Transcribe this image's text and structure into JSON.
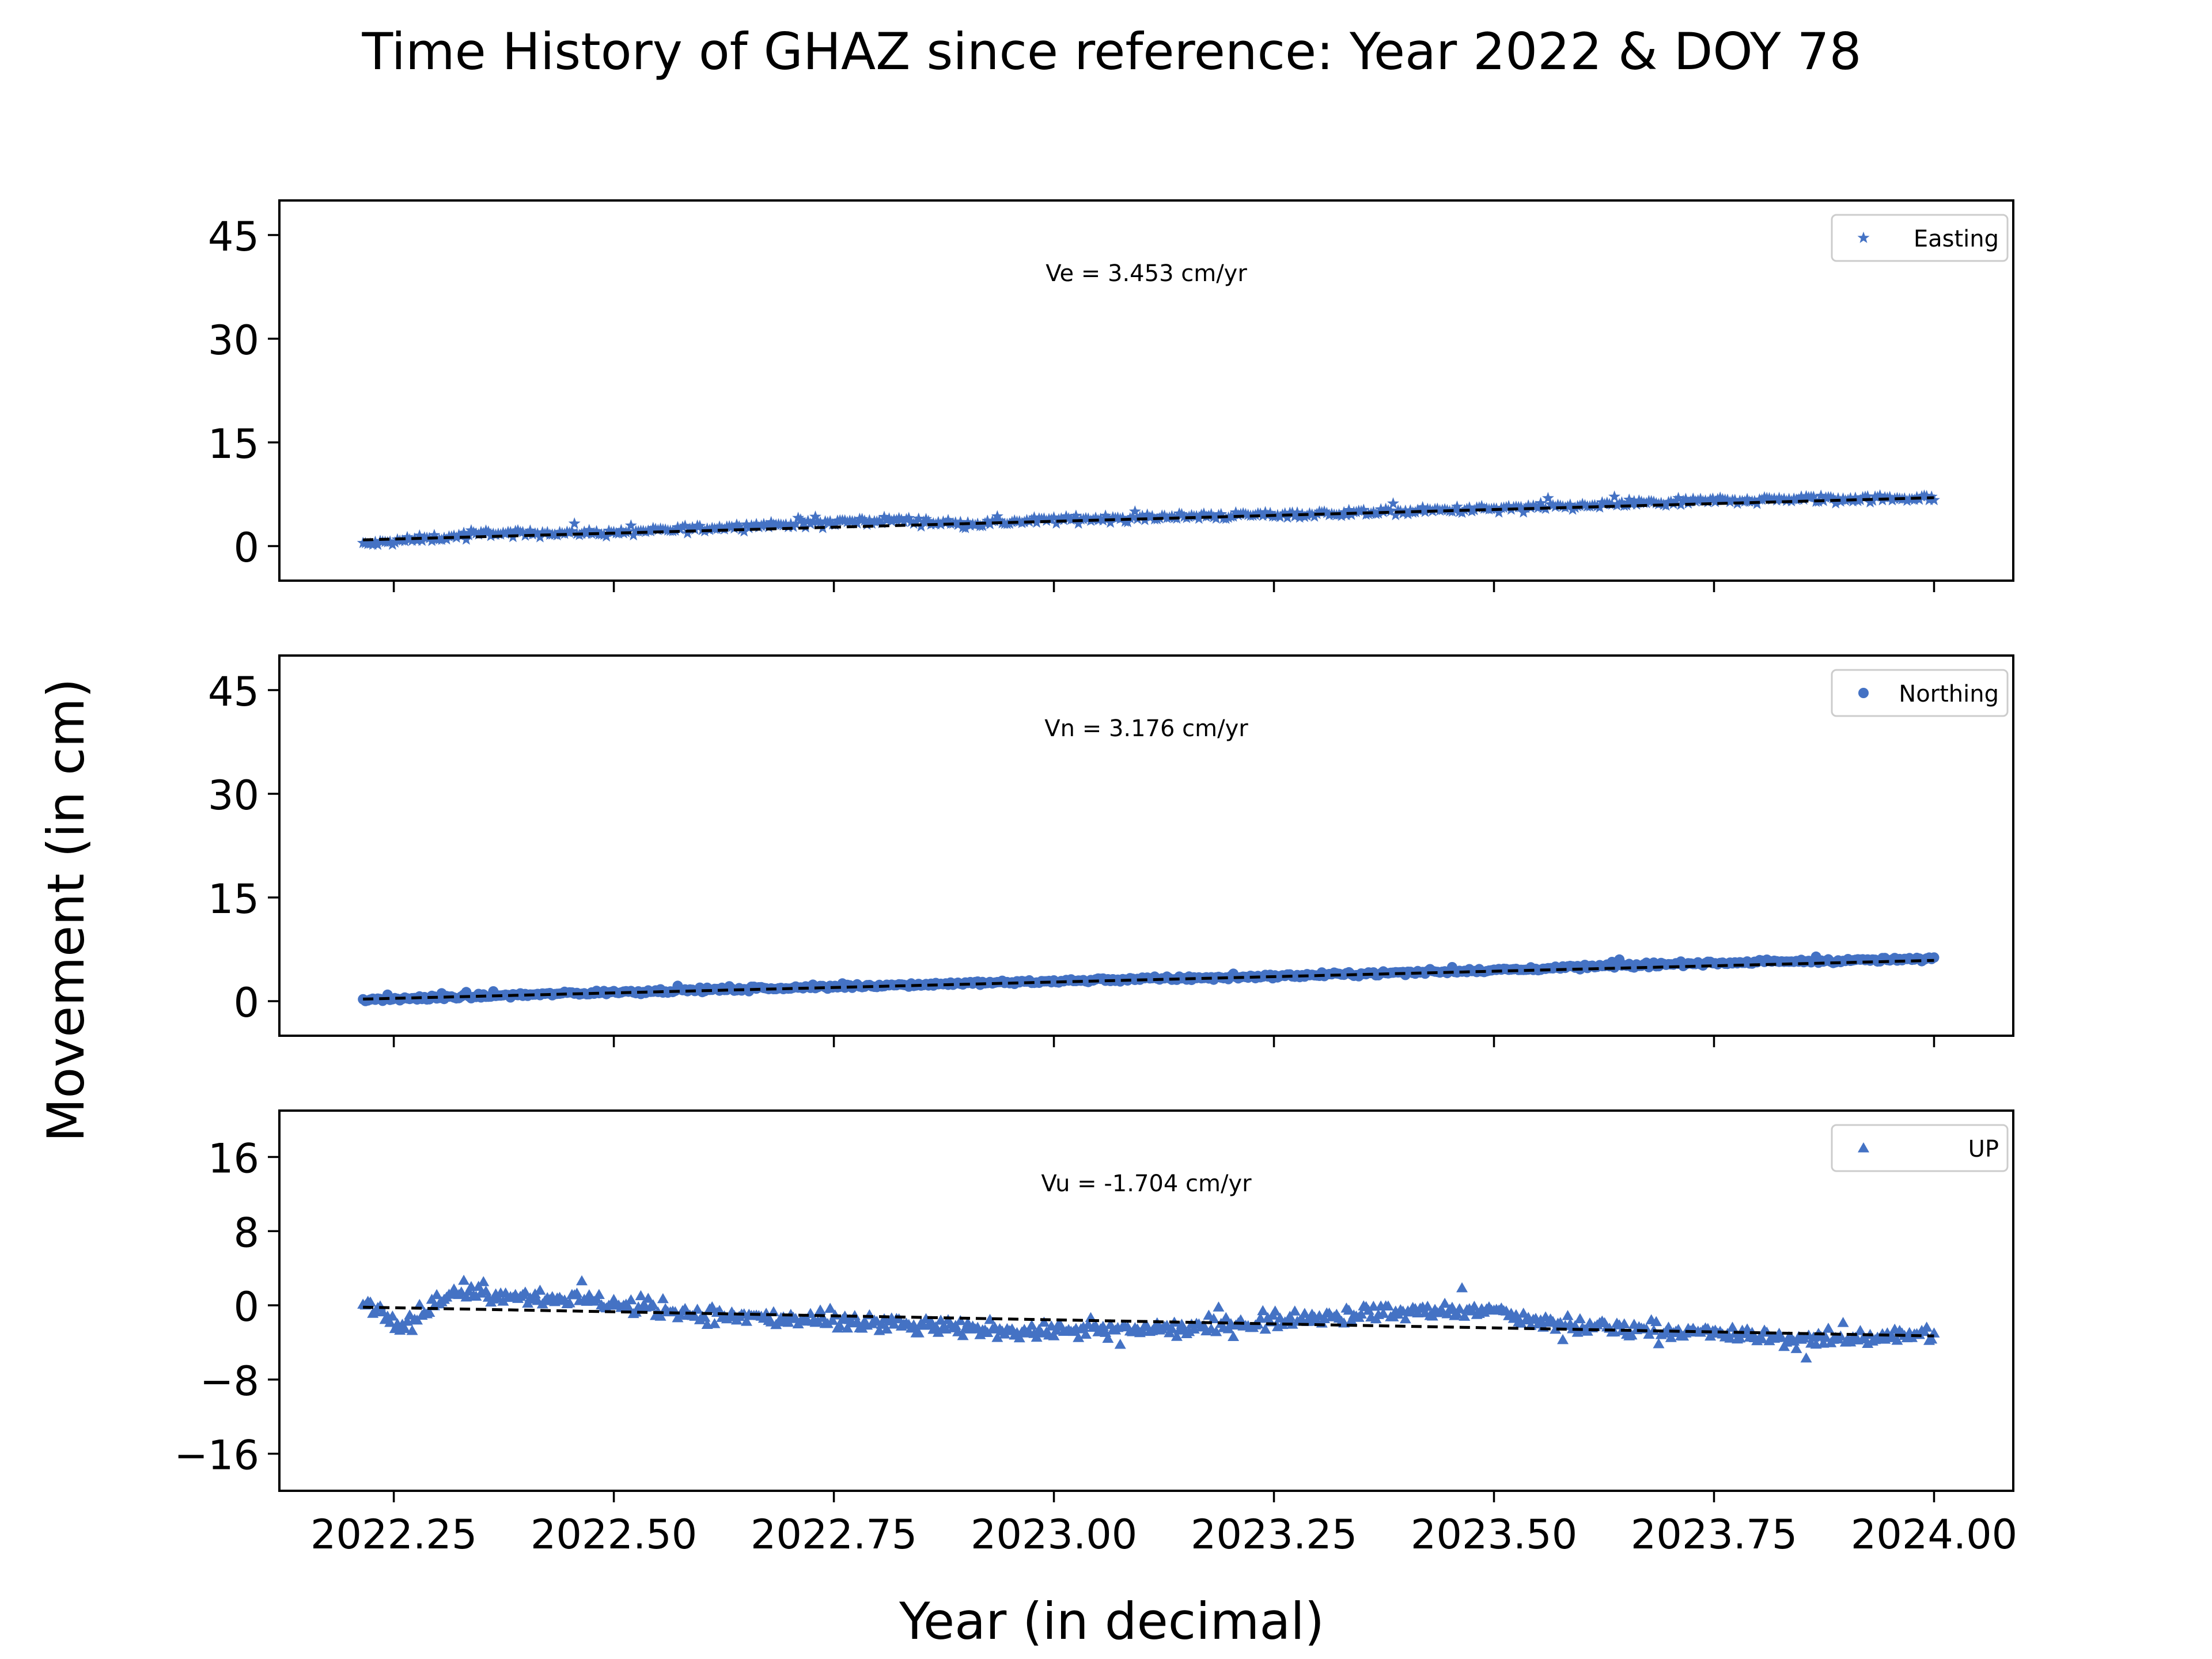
{
  "chart_data": {
    "type": "scatter",
    "title": "Time History of GHAZ since reference: Year 2022 & DOY 78",
    "xlabel": "Year (in decimal)",
    "ylabel": "Movement (in cm)",
    "xlim": [
      2022.12,
      2024.09
    ],
    "xticks": [
      "2022.25",
      "2022.50",
      "2022.75",
      "2023.00",
      "2023.25",
      "2023.50",
      "2023.75",
      "2024.00"
    ],
    "xtick_values": [
      2022.25,
      2022.5,
      2022.75,
      2023.0,
      2023.25,
      2023.5,
      2023.75,
      2024.0
    ],
    "x_start": 2022.215,
    "x_end": 2024.0,
    "marker_color": "#4472c4",
    "trend_color": "#000000",
    "grid": false,
    "legend_position": "top-right",
    "panels": [
      {
        "series_name": "Easting",
        "marker": "star",
        "ylim": [
          -5,
          50
        ],
        "yticks": [
          0,
          15,
          30,
          45
        ],
        "ytick_labels": [
          "0",
          "15",
          "30",
          "45"
        ],
        "annotation": "Ve =  3.453 cm/yr",
        "trend": {
          "start": [
            2022.215,
            0.9
          ],
          "end": [
            2024.0,
            7.0
          ]
        },
        "profile": [
          [
            2022.215,
            0.2
          ],
          [
            2022.35,
            1.8
          ],
          [
            2022.5,
            1.9
          ],
          [
            2022.65,
            2.9
          ],
          [
            2022.82,
            3.8
          ],
          [
            2022.9,
            3.1
          ],
          [
            2023.0,
            3.8
          ],
          [
            2023.2,
            4.4
          ],
          [
            2023.4,
            5.0
          ],
          [
            2023.6,
            5.8
          ],
          [
            2023.75,
            6.6
          ],
          [
            2024.0,
            7.0
          ]
        ],
        "scatter": 0.8
      },
      {
        "series_name": "Northing",
        "marker": "circle",
        "ylim": [
          -5,
          50
        ],
        "yticks": [
          0,
          15,
          30,
          45
        ],
        "ytick_labels": [
          "0",
          "15",
          "30",
          "45"
        ],
        "annotation": "Vn =  3.176 cm/yr",
        "trend": {
          "start": [
            2022.215,
            0.3
          ],
          "end": [
            2024.0,
            5.9
          ]
        },
        "profile": [
          [
            2022.215,
            0.2
          ],
          [
            2022.5,
            1.3
          ],
          [
            2022.75,
            2.1
          ],
          [
            2023.0,
            2.9
          ],
          [
            2023.25,
            3.6
          ],
          [
            2023.5,
            4.5
          ],
          [
            2023.7,
            5.4
          ],
          [
            2024.0,
            6.1
          ]
        ],
        "scatter": 0.45
      },
      {
        "series_name": "UP",
        "marker": "triangle",
        "ylim": [
          -20,
          21
        ],
        "yticks": [
          -16,
          -8,
          0,
          8,
          16
        ],
        "ytick_labels": [
          "−16",
          "−8",
          "0",
          "8",
          "16"
        ],
        "annotation": "Vu = -1.704 cm/yr",
        "trend": {
          "start": [
            2022.215,
            -0.2
          ],
          "end": [
            2024.0,
            -3.3
          ]
        },
        "profile": [
          [
            2022.215,
            0.5
          ],
          [
            2022.26,
            -2.0
          ],
          [
            2022.32,
            1.5
          ],
          [
            2022.45,
            0.8
          ],
          [
            2022.6,
            -1.0
          ],
          [
            2022.8,
            -2.0
          ],
          [
            2022.95,
            -2.8
          ],
          [
            2023.15,
            -2.5
          ],
          [
            2023.35,
            -0.8
          ],
          [
            2023.5,
            -0.5
          ],
          [
            2023.55,
            -2.0
          ],
          [
            2023.75,
            -3.0
          ],
          [
            2023.85,
            -3.8
          ],
          [
            2024.0,
            -3.0
          ]
        ],
        "scatter": 1.4
      }
    ]
  }
}
